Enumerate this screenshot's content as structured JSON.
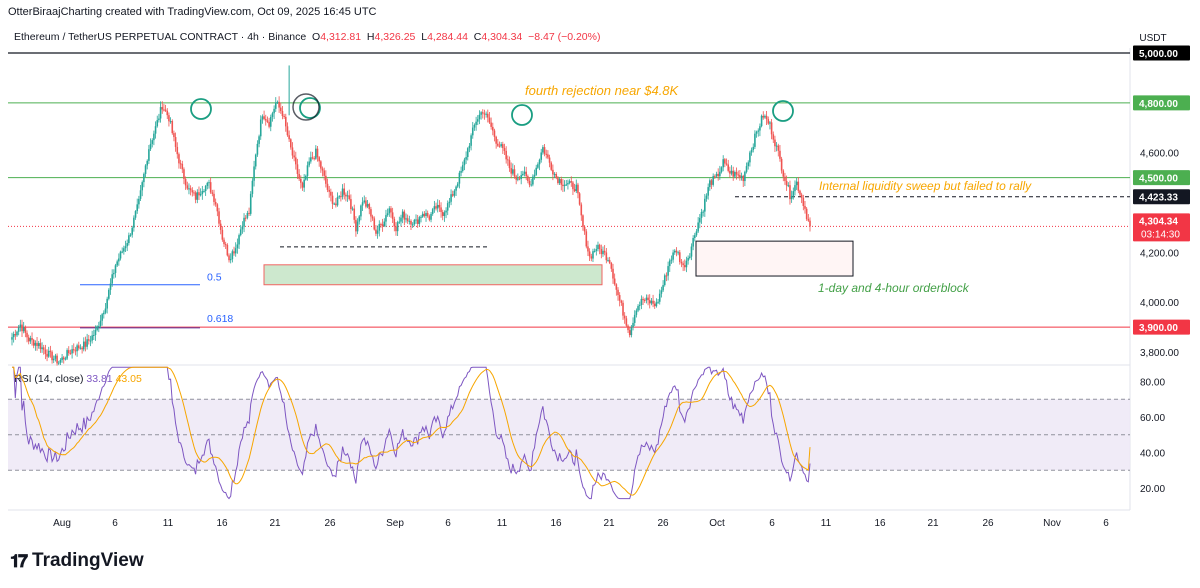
{
  "header": {
    "attribution": "OtterBiraajCharting created with TradingView.com, Oct 09, 2025 16:45 UTC"
  },
  "symbol": {
    "name": "Ethereum / TetherUS PERPETUAL CONTRACT · 4h · Binance",
    "o_label": "O",
    "o": "4,312.81",
    "h_label": "H",
    "h": "4,326.25",
    "l_label": "L",
    "l": "4,284.44",
    "c_label": "C",
    "c": "4,304.34",
    "change": "−8.47 (−0.20%)"
  },
  "price_axis": {
    "unit": "USDT",
    "ticks": [
      "4,600.00",
      "4,200.00",
      "4,000.00",
      "3,800.00"
    ],
    "tick_values": [
      4600,
      4200,
      4000,
      3800
    ]
  },
  "price_labels": [
    {
      "text": "5,000.00",
      "value": 5000,
      "bg": "#000000",
      "fg": "#ffffff"
    },
    {
      "text": "4,800.00",
      "value": 4800,
      "bg": "#4caf50",
      "fg": "#ffffff"
    },
    {
      "text": "4,500.00",
      "value": 4500,
      "bg": "#4caf50",
      "fg": "#ffffff"
    },
    {
      "text": "4,423.33",
      "value": 4423.33,
      "bg": "#131722",
      "fg": "#ffffff"
    },
    {
      "text": "3,900.00",
      "value": 3900,
      "bg": "#f23645",
      "fg": "#ffffff"
    }
  ],
  "last_price": {
    "text": "4,304.34",
    "countdown": "03:14:30",
    "value": 4304.34,
    "bg": "#f23645"
  },
  "rsi": {
    "label": "RSI (14, close)",
    "value": "33.81",
    "ma": "43.05",
    "ticks": [
      "80.00",
      "60.00",
      "40.00",
      "20.00"
    ],
    "tick_values": [
      80,
      60,
      40,
      20
    ],
    "band_upper": 70,
    "band_lower": 30,
    "mid": 50
  },
  "time_axis": [
    "Aug",
    "6",
    "11",
    "16",
    "21",
    "26",
    "Sep",
    "6",
    "11",
    "16",
    "21",
    "26",
    "Oct",
    "6",
    "11",
    "16",
    "21",
    "26",
    "Nov",
    "6"
  ],
  "annotations": {
    "rejection": "fourth rejection near $4.8K",
    "sweep": "Internal liquidity sweep but failed to rally",
    "orderblock": "1-day and 4-hour orderblock",
    "fib_05": "0.5",
    "fib_0618": "0.618"
  },
  "colors": {
    "up": "#26a69a",
    "down": "#ef5350",
    "green_line": "#4caf50",
    "red_line": "#f23645",
    "rsi": "#7e57c2",
    "rsi_ma": "#f7a600",
    "orange_text": "#f7a600",
    "green_text": "#43a047",
    "circle": "#1a9e82",
    "fib": "#2962ff"
  },
  "chart_data": {
    "type": "candlestick",
    "title": "Ethereum / TetherUS PERPETUAL CONTRACT · 4h · Binance",
    "ylabel": "USDT",
    "ylim": [
      3760,
      5020
    ],
    "horizontal_levels": [
      5000,
      4800,
      4500,
      3900
    ],
    "series": [
      {
        "name": "ETHUSDT 4h close (approx.)",
        "anchors": [
          [
            0,
            3860
          ],
          [
            5,
            3910
          ],
          [
            10,
            3850
          ],
          [
            16,
            3830
          ],
          [
            22,
            3790
          ],
          [
            28,
            3760
          ],
          [
            36,
            3810
          ],
          [
            44,
            3830
          ],
          [
            50,
            3880
          ],
          [
            56,
            3990
          ],
          [
            62,
            4150
          ],
          [
            70,
            4260
          ],
          [
            76,
            4400
          ],
          [
            82,
            4620
          ],
          [
            86,
            4700
          ],
          [
            90,
            4790
          ],
          [
            94,
            4740
          ],
          [
            98,
            4620
          ],
          [
            102,
            4520
          ],
          [
            106,
            4450
          ],
          [
            110,
            4420
          ],
          [
            114,
            4460
          ],
          [
            118,
            4470
          ],
          [
            122,
            4400
          ],
          [
            126,
            4260
          ],
          [
            130,
            4180
          ],
          [
            134,
            4220
          ],
          [
            138,
            4320
          ],
          [
            142,
            4360
          ],
          [
            146,
            4600
          ],
          [
            150,
            4760
          ],
          [
            154,
            4720
          ],
          [
            158,
            4800
          ],
          [
            162,
            4760
          ],
          [
            166,
            4640
          ],
          [
            170,
            4540
          ],
          [
            174,
            4450
          ],
          [
            178,
            4560
          ],
          [
            182,
            4600
          ],
          [
            186,
            4520
          ],
          [
            190,
            4430
          ],
          [
            194,
            4390
          ],
          [
            198,
            4450
          ],
          [
            202,
            4420
          ],
          [
            206,
            4300
          ],
          [
            210,
            4410
          ],
          [
            214,
            4370
          ],
          [
            218,
            4280
          ],
          [
            222,
            4320
          ],
          [
            226,
            4380
          ],
          [
            230,
            4300
          ],
          [
            234,
            4350
          ],
          [
            238,
            4330
          ],
          [
            242,
            4320
          ],
          [
            246,
            4360
          ],
          [
            250,
            4340
          ],
          [
            254,
            4380
          ],
          [
            258,
            4360
          ],
          [
            262,
            4400
          ],
          [
            266,
            4470
          ],
          [
            270,
            4540
          ],
          [
            274,
            4640
          ],
          [
            278,
            4730
          ],
          [
            282,
            4770
          ],
          [
            286,
            4720
          ],
          [
            290,
            4650
          ],
          [
            294,
            4610
          ],
          [
            298,
            4540
          ],
          [
            302,
            4500
          ],
          [
            306,
            4520
          ],
          [
            310,
            4470
          ],
          [
            314,
            4540
          ],
          [
            318,
            4620
          ],
          [
            322,
            4560
          ],
          [
            326,
            4500
          ],
          [
            330,
            4480
          ],
          [
            334,
            4470
          ],
          [
            338,
            4460
          ],
          [
            342,
            4300
          ],
          [
            346,
            4180
          ],
          [
            350,
            4220
          ],
          [
            354,
            4200
          ],
          [
            358,
            4170
          ],
          [
            362,
            4050
          ],
          [
            366,
            3960
          ],
          [
            370,
            3880
          ],
          [
            374,
            3980
          ],
          [
            378,
            4010
          ],
          [
            382,
            4000
          ],
          [
            386,
            3990
          ],
          [
            390,
            4070
          ],
          [
            394,
            4170
          ],
          [
            398,
            4210
          ],
          [
            402,
            4140
          ],
          [
            406,
            4200
          ],
          [
            410,
            4300
          ],
          [
            414,
            4380
          ],
          [
            418,
            4480
          ],
          [
            422,
            4500
          ],
          [
            426,
            4560
          ],
          [
            430,
            4520
          ],
          [
            434,
            4510
          ],
          [
            438,
            4500
          ],
          [
            442,
            4600
          ],
          [
            446,
            4680
          ],
          [
            450,
            4750
          ],
          [
            454,
            4710
          ],
          [
            458,
            4620
          ],
          [
            462,
            4520
          ],
          [
            466,
            4430
          ],
          [
            470,
            4480
          ],
          [
            474,
            4400
          ],
          [
            478,
            4300
          ]
        ]
      },
      {
        "name": "RSI (14)",
        "last": 33.81
      },
      {
        "name": "RSI MA",
        "last": 43.05
      }
    ]
  }
}
